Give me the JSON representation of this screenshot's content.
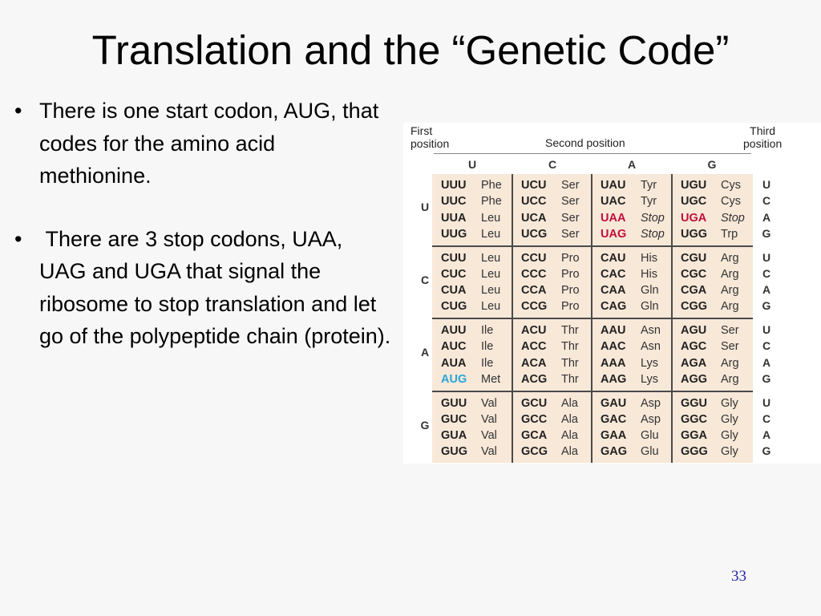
{
  "slide": {
    "title": "Translation and the “Genetic Code”",
    "bullets": [
      {
        "marker": "•",
        "text": "There is one start codon, AUG, that codes for the amino acid methionine."
      },
      {
        "marker": "•",
        "text": " There are 3 stop codons, UAA, UAG and UGA that signal the ribosome to stop translation and let go of the polypeptide chain (protein)."
      }
    ],
    "page_number": "33"
  },
  "codon_table": {
    "first_position_label": "First\nposition",
    "second_position_label": "Second position",
    "third_position_label": "Third\nposition",
    "first_letters": [
      "U",
      "C",
      "A",
      "G"
    ],
    "second_letters": [
      "U",
      "C",
      "A",
      "G"
    ],
    "third_letters": [
      "U",
      "C",
      "A",
      "G"
    ],
    "highlight_colors": {
      "stop": "#c0103c",
      "start": "#2aa5d8",
      "grid": "#f7e8d8"
    },
    "blocks": [
      {
        "first": "U",
        "rows": [
          [
            [
              "UUU",
              "Phe"
            ],
            [
              "UCU",
              "Ser"
            ],
            [
              "UAU",
              "Tyr"
            ],
            [
              "UGU",
              "Cys"
            ]
          ],
          [
            [
              "UUC",
              "Phe"
            ],
            [
              "UCC",
              "Ser"
            ],
            [
              "UAC",
              "Tyr"
            ],
            [
              "UGC",
              "Cys"
            ]
          ],
          [
            [
              "UUA",
              "Leu"
            ],
            [
              "UCA",
              "Ser"
            ],
            [
              "UAA",
              "Stop"
            ],
            [
              "UGA",
              "Stop"
            ]
          ],
          [
            [
              "UUG",
              "Leu"
            ],
            [
              "UCG",
              "Ser"
            ],
            [
              "UAG",
              "Stop"
            ],
            [
              "UGG",
              "Trp"
            ]
          ]
        ]
      },
      {
        "first": "C",
        "rows": [
          [
            [
              "CUU",
              "Leu"
            ],
            [
              "CCU",
              "Pro"
            ],
            [
              "CAU",
              "His"
            ],
            [
              "CGU",
              "Arg"
            ]
          ],
          [
            [
              "CUC",
              "Leu"
            ],
            [
              "CCC",
              "Pro"
            ],
            [
              "CAC",
              "His"
            ],
            [
              "CGC",
              "Arg"
            ]
          ],
          [
            [
              "CUA",
              "Leu"
            ],
            [
              "CCA",
              "Pro"
            ],
            [
              "CAA",
              "Gln"
            ],
            [
              "CGA",
              "Arg"
            ]
          ],
          [
            [
              "CUG",
              "Leu"
            ],
            [
              "CCG",
              "Pro"
            ],
            [
              "CAG",
              "Gln"
            ],
            [
              "CGG",
              "Arg"
            ]
          ]
        ]
      },
      {
        "first": "A",
        "rows": [
          [
            [
              "AUU",
              "Ile"
            ],
            [
              "ACU",
              "Thr"
            ],
            [
              "AAU",
              "Asn"
            ],
            [
              "AGU",
              "Ser"
            ]
          ],
          [
            [
              "AUC",
              "Ile"
            ],
            [
              "ACC",
              "Thr"
            ],
            [
              "AAC",
              "Asn"
            ],
            [
              "AGC",
              "Ser"
            ]
          ],
          [
            [
              "AUA",
              "Ile"
            ],
            [
              "ACA",
              "Thr"
            ],
            [
              "AAA",
              "Lys"
            ],
            [
              "AGA",
              "Arg"
            ]
          ],
          [
            [
              "AUG",
              "Met"
            ],
            [
              "ACG",
              "Thr"
            ],
            [
              "AAG",
              "Lys"
            ],
            [
              "AGG",
              "Arg"
            ]
          ]
        ]
      },
      {
        "first": "G",
        "rows": [
          [
            [
              "GUU",
              "Val"
            ],
            [
              "GCU",
              "Ala"
            ],
            [
              "GAU",
              "Asp"
            ],
            [
              "GGU",
              "Gly"
            ]
          ],
          [
            [
              "GUC",
              "Val"
            ],
            [
              "GCC",
              "Ala"
            ],
            [
              "GAC",
              "Asp"
            ],
            [
              "GGC",
              "Gly"
            ]
          ],
          [
            [
              "GUA",
              "Val"
            ],
            [
              "GCA",
              "Ala"
            ],
            [
              "GAA",
              "Glu"
            ],
            [
              "GGA",
              "Gly"
            ]
          ],
          [
            [
              "GUG",
              "Val"
            ],
            [
              "GCG",
              "Ala"
            ],
            [
              "GAG",
              "Glu"
            ],
            [
              "GGG",
              "Gly"
            ]
          ]
        ]
      }
    ]
  }
}
